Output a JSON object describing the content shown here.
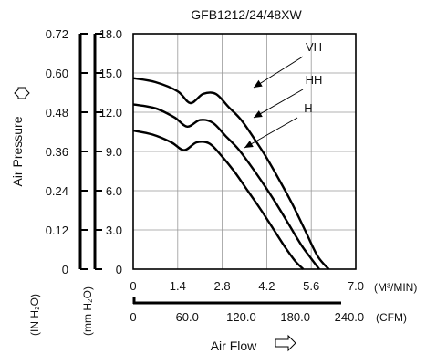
{
  "chart_data": {
    "type": "line",
    "title": "GFB1212/24/48XW",
    "xlabel": "Air Flow",
    "ylabel": "Air Pressure",
    "x_axis": {
      "unit": "(M³/MIN)",
      "range": [
        0,
        7.0
      ],
      "ticks": [
        "0",
        "1.4",
        "2.8",
        "4.2",
        "5.6",
        "7.0"
      ]
    },
    "x_axis_cfm": {
      "unit": "(CFM)",
      "range": [
        0,
        247.2
      ],
      "ticks": [
        "0",
        "60.0",
        "120.0",
        "180.0",
        "240.0"
      ]
    },
    "y_axis_mm": {
      "unit": "(mm H₂O)",
      "range": [
        0,
        18.0
      ],
      "ticks": [
        "0",
        "3.0",
        "6.0",
        "9.0",
        "12.0",
        "15.0",
        "18.0"
      ]
    },
    "y_axis_in": {
      "unit": "(IN H₂O)",
      "range": [
        0,
        0.72
      ],
      "ticks": [
        "0",
        "0.12",
        "0.24",
        "0.36",
        "0.48",
        "0.60",
        "0.72"
      ]
    },
    "grid": true,
    "series": [
      {
        "name": "VH",
        "x": [
          0,
          0.7,
          1.4,
          1.8,
          2.2,
          2.6,
          3.0,
          3.4,
          3.8,
          4.2,
          4.6,
          5.0,
          5.4,
          5.8,
          6.15
        ],
        "y": [
          14.6,
          14.3,
          13.6,
          12.7,
          13.4,
          13.4,
          12.4,
          11.4,
          10.0,
          8.5,
          6.8,
          5.0,
          3.0,
          1.0,
          0
        ]
      },
      {
        "name": "HH",
        "x": [
          0,
          0.7,
          1.3,
          1.7,
          2.1,
          2.5,
          2.9,
          3.3,
          3.7,
          4.1,
          4.5,
          4.9,
          5.3,
          5.6,
          5.85
        ],
        "y": [
          12.6,
          12.3,
          11.6,
          10.9,
          11.4,
          11.2,
          10.2,
          9.2,
          7.9,
          6.5,
          5.0,
          3.4,
          1.8,
          0.8,
          0
        ]
      },
      {
        "name": "H",
        "x": [
          0,
          0.6,
          1.2,
          1.6,
          2.0,
          2.4,
          2.8,
          3.2,
          3.6,
          4.0,
          4.4,
          4.8,
          5.1,
          5.35
        ],
        "y": [
          10.6,
          10.3,
          9.7,
          9.1,
          9.7,
          9.6,
          8.6,
          7.4,
          6.0,
          4.6,
          3.1,
          1.6,
          0.6,
          0
        ]
      }
    ]
  }
}
